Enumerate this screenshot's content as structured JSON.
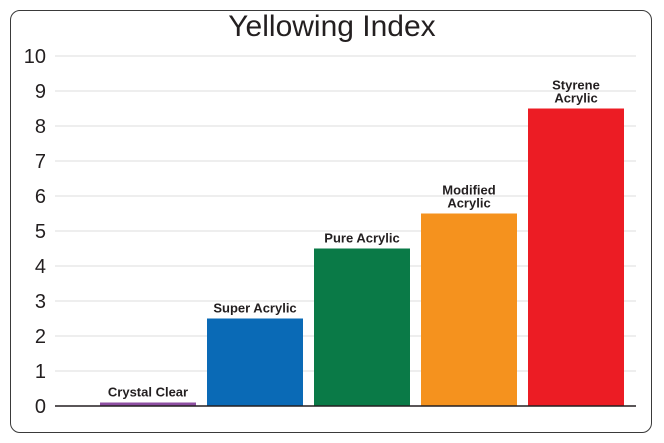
{
  "chart_data": {
    "type": "bar",
    "title": "Yellowing Index",
    "xlabel": "",
    "ylabel": "",
    "ylim": [
      0,
      10
    ],
    "yticks": [
      0,
      1,
      2,
      3,
      4,
      5,
      6,
      7,
      8,
      9,
      10
    ],
    "grid": true,
    "categories": [
      "Crystal Clear",
      "Super Acrylic",
      "Pure Acrylic",
      "Modified Acrylic",
      "Styrene Acrylic"
    ],
    "label_lines": [
      [
        "Crystal Clear"
      ],
      [
        "Super Acrylic"
      ],
      [
        "Pure Acrylic"
      ],
      [
        "Modified",
        "Acrylic"
      ],
      [
        "Styrene",
        "Acrylic"
      ]
    ],
    "values": [
      0.1,
      2.5,
      4.5,
      5.5,
      8.5
    ],
    "colors": [
      "#8e4fa2",
      "#0a6ab6",
      "#0a7a47",
      "#f5921e",
      "#ec1c24"
    ]
  }
}
